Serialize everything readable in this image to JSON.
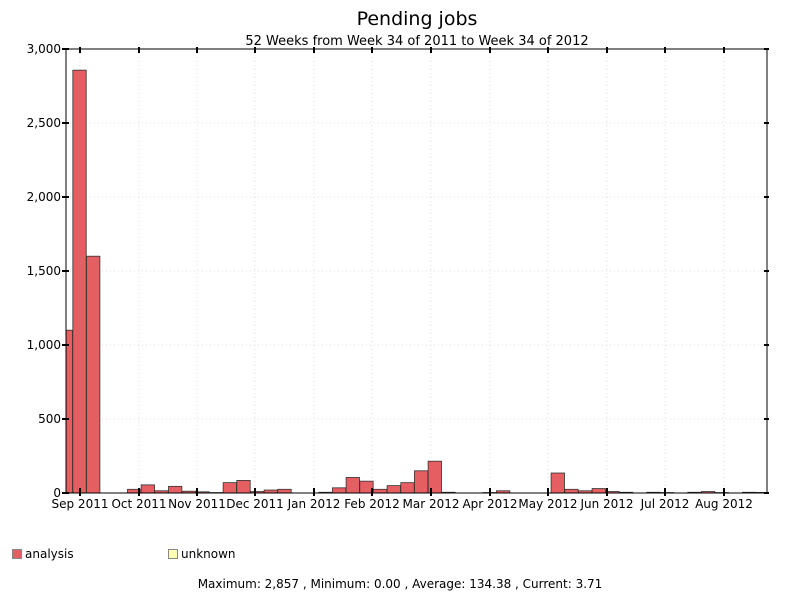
{
  "chart_data": {
    "type": "bar",
    "title": "Pending jobs",
    "subtitle": "52 Weeks from Week 34 of 2011 to Week 34 of 2012",
    "ylim": [
      0,
      3000
    ],
    "yticks": [
      0,
      500,
      1000,
      1500,
      2000,
      2500,
      3000
    ],
    "ytick_labels": [
      "0",
      "500",
      "1,000",
      "1,500",
      "2,000",
      "2,500",
      "3,000"
    ],
    "month_labels": [
      "Sep 2011",
      "Oct 2011",
      "Nov 2011",
      "Dec 2011",
      "Jan 2012",
      "Feb 2012",
      "Mar 2012",
      "Apr 2012",
      "May 2012",
      "Jun 2012",
      "Jul 2012",
      "Aug 2012"
    ],
    "grid": true,
    "legend_placement": "bottom-left",
    "series": [
      {
        "name": "analysis",
        "color": "#e45e62",
        "values": [
          1100,
          2857,
          1600,
          0,
          0,
          25,
          55,
          15,
          45,
          12,
          8,
          3,
          70,
          85,
          10,
          20,
          25,
          0,
          0,
          5,
          35,
          105,
          80,
          25,
          50,
          70,
          150,
          215,
          5,
          0,
          0,
          3,
          15,
          0,
          0,
          0,
          135,
          25,
          15,
          30,
          10,
          5,
          0,
          5,
          3,
          0,
          5,
          10,
          3,
          0,
          5,
          4
        ]
      },
      {
        "name": "unknown",
        "color": "#ffffb3",
        "values": []
      }
    ],
    "footer": "Maximum: 2,857 , Minimum: 0.00 , Average: 134.38 , Current: 3.71"
  }
}
